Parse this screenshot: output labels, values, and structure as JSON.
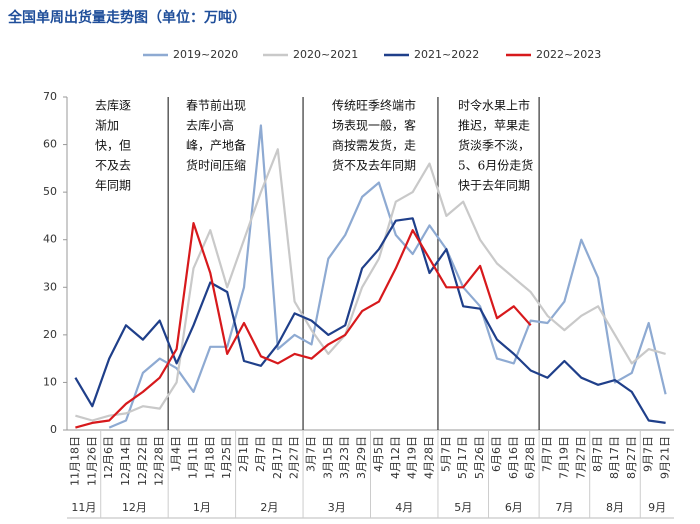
{
  "chart_data": {
    "type": "line",
    "title": "全国单周出货量走势图（单位：万吨）",
    "categories": [
      "11月18日",
      "11月26日",
      "12月6日",
      "12月14日",
      "12月22日",
      "12月28日",
      "1月4日",
      "1月11日",
      "1月18日",
      "1月25日",
      "2月1日",
      "2月7日",
      "2月17日",
      "2月27日",
      "3月7日",
      "3月15日",
      "3月23日",
      "3月29日",
      "4月5日",
      "4月12日",
      "4月19日",
      "4月28日",
      "5月7日",
      "5月17日",
      "5月26日",
      "6月6日",
      "6月16日",
      "6月28日",
      "7月7日",
      "7月19日",
      "7月27日",
      "8月7日",
      "8月17日",
      "8月27日",
      "9月7日",
      "9月21日"
    ],
    "months": [
      "11月",
      "12月",
      "1月",
      "2月",
      "3月",
      "4月",
      "5月",
      "6月",
      "7月",
      "8月",
      "9月"
    ],
    "ylim": [
      0,
      70
    ],
    "yticks": [
      0,
      10,
      20,
      30,
      40,
      50,
      60,
      70
    ],
    "series": [
      {
        "name": "2019~2020",
        "color": "#8eaad2",
        "values": [
          null,
          null,
          0.5,
          2,
          12,
          15,
          13,
          8,
          17.5,
          17.5,
          30,
          64,
          17,
          20,
          18,
          36,
          41,
          49,
          52,
          41,
          37,
          43,
          38,
          30,
          26,
          15,
          14,
          23,
          22.5,
          27,
          40,
          32,
          10,
          12,
          22.5,
          7.5
        ]
      },
      {
        "name": "2020~2021",
        "color": "#c9c9c9",
        "values": [
          3,
          2,
          3,
          3.5,
          5,
          4.5,
          10,
          34,
          42,
          30,
          40,
          50,
          59,
          27,
          21,
          16,
          20,
          30,
          36,
          48,
          50,
          56,
          45,
          48,
          40,
          35,
          32,
          29,
          24,
          21,
          24,
          26,
          20,
          14,
          17,
          16
        ]
      },
      {
        "name": "2021~2022",
        "color": "#1f3f8a",
        "values": [
          11,
          5,
          15,
          22,
          19,
          23,
          14,
          22,
          31,
          29,
          14.5,
          13.5,
          18,
          24.5,
          23,
          20,
          22,
          34,
          38,
          44,
          44.5,
          33,
          38,
          26,
          25.5,
          19,
          16,
          12.5,
          11,
          14.5,
          11,
          9.5,
          10.5,
          8,
          2,
          1.5
        ]
      },
      {
        "name": "2022~2023",
        "color": "#d7191c",
        "values": [
          0.5,
          1.5,
          2,
          5.5,
          8,
          11,
          17,
          43.5,
          33,
          16,
          22.5,
          15.5,
          14,
          16,
          15,
          18,
          20,
          25,
          27,
          34,
          42,
          36,
          30,
          30,
          34.5,
          23.5,
          26,
          22,
          null,
          null,
          null,
          null,
          null,
          null,
          null,
          null
        ]
      }
    ],
    "annotations": [
      {
        "lines": [
          "去库逐",
          "渐加",
          "快，但",
          "不及去",
          "年同期"
        ]
      },
      {
        "lines": [
          "春节前出现",
          "去库小高",
          "峰，产地备",
          "货时间压缩"
        ]
      },
      {
        "lines": [
          "传统旺季终端市",
          "场表现一般，客",
          "商按需发货，走",
          "货不及去年同期"
        ]
      },
      {
        "lines": [
          "时令水果上市",
          "推迟，苹果走",
          "货淡季不淡，",
          "5、6月份走货",
          "快于去年同期"
        ]
      }
    ]
  }
}
